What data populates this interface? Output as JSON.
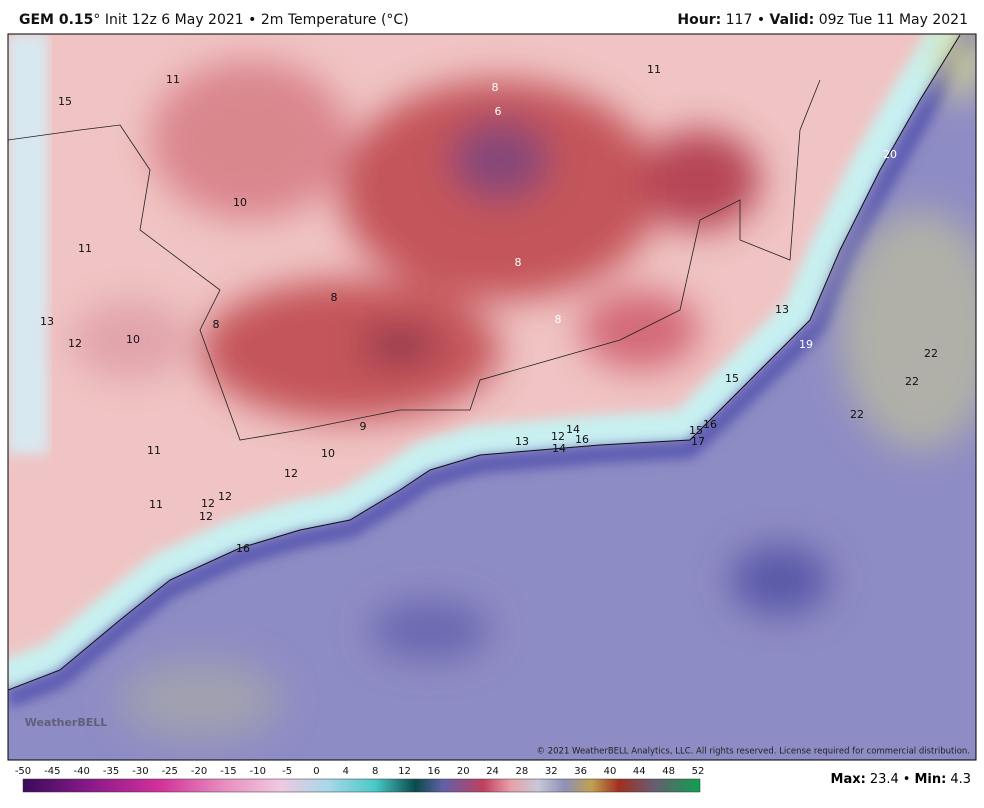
{
  "header": {
    "model": "GEM 0.15",
    "run": "° Init 12z 6 May 2021 • 2m Temperature (°C)",
    "hour_label": "Hour:",
    "hour_value": " 117 • ",
    "valid_label": "Valid:",
    "valid_value": " 09z Tue 11 May 2021"
  },
  "map": {
    "point_labels": [
      11,
      15,
      11,
      8,
      6,
      20,
      10,
      11,
      8,
      8,
      8,
      13,
      13,
      8,
      12,
      10,
      19,
      22,
      22,
      15,
      22,
      9,
      14,
      12,
      16,
      13,
      15,
      16,
      17,
      14,
      11,
      10,
      12,
      12,
      11,
      12,
      12,
      16
    ],
    "copyright": "© 2021 WeatherBELL Analytics, LLC. All rights reserved. License required for commercial distribution.",
    "logo": "WeatherBELL"
  },
  "colorbar": {
    "ticks": [
      -50,
      -45,
      -40,
      -35,
      -30,
      -25,
      -20,
      -15,
      -10,
      -5,
      0,
      4,
      8,
      12,
      16,
      20,
      24,
      28,
      32,
      36,
      40,
      44,
      48,
      52
    ]
  },
  "footer": {
    "max_label": "Max:",
    "max_value": 23.4,
    "separator": "•",
    "min_label": "Min:",
    "min_value": 4.3
  }
}
